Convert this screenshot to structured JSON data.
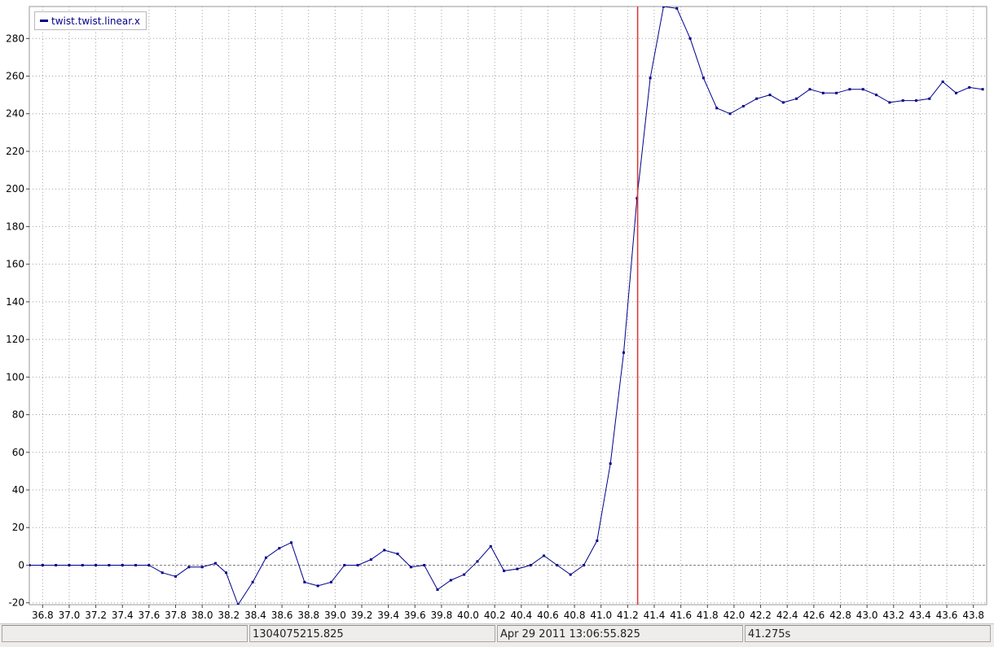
{
  "chart_data": {
    "type": "line",
    "legend": {
      "label": "twist.twist.linear.x",
      "placement": "top-left"
    },
    "xlim": [
      36.7,
      43.9
    ],
    "ylim": [
      -21,
      297
    ],
    "grid": true,
    "x_ticks": [
      "36.8",
      "37.0",
      "37.2",
      "37.4",
      "37.6",
      "37.8",
      "38.0",
      "38.2",
      "38.4",
      "38.6",
      "38.8",
      "39.0",
      "39.2",
      "39.4",
      "39.6",
      "39.8",
      "40.0",
      "40.2",
      "40.4",
      "40.6",
      "40.8",
      "41.0",
      "41.2",
      "41.4",
      "41.6",
      "41.8",
      "42.0",
      "42.2",
      "42.4",
      "42.6",
      "42.8",
      "43.0",
      "43.2",
      "43.4",
      "43.6",
      "43.8"
    ],
    "y_ticks": [
      "-20",
      "0",
      "20",
      "40",
      "60",
      "80",
      "100",
      "120",
      "140",
      "160",
      "180",
      "200",
      "220",
      "240",
      "260",
      "280"
    ],
    "cursor_x": 41.275,
    "colors": {
      "series": "#00008b",
      "cursor": "#e03030",
      "zero_line": "#808080",
      "grid": "#a0a0a0"
    },
    "series": [
      {
        "name": "twist.twist.linear.x",
        "x": [
          36.7,
          36.8,
          36.9,
          37.0,
          37.1,
          37.2,
          37.3,
          37.4,
          37.5,
          37.6,
          37.7,
          37.8,
          37.9,
          38.0,
          38.1,
          38.18,
          38.27,
          38.38,
          38.48,
          38.58,
          38.67,
          38.77,
          38.87,
          38.97,
          39.07,
          39.17,
          39.27,
          39.37,
          39.47,
          39.57,
          39.67,
          39.77,
          39.87,
          39.97,
          40.07,
          40.17,
          40.27,
          40.37,
          40.47,
          40.57,
          40.67,
          40.77,
          40.87,
          40.97,
          41.07,
          41.17,
          41.27,
          41.37,
          41.47,
          41.57,
          41.67,
          41.77,
          41.87,
          41.97,
          42.07,
          42.17,
          42.27,
          42.37,
          42.47,
          42.57,
          42.67,
          42.77,
          42.87,
          42.97,
          43.07,
          43.17,
          43.27,
          43.37,
          43.47,
          43.57,
          43.67,
          43.77,
          43.87
        ],
        "y": [
          0,
          0,
          0,
          0,
          0,
          0,
          0,
          0,
          0,
          0,
          -4,
          -6,
          -1,
          -1,
          1,
          -4,
          -21,
          -9,
          4,
          9,
          12,
          -9,
          -11,
          -9,
          0,
          0,
          3,
          8,
          6,
          -1,
          0,
          -13,
          -8,
          -5,
          2,
          10,
          -3,
          -2,
          0,
          5,
          0,
          -5,
          0,
          13,
          54,
          113,
          195,
          259,
          297,
          296,
          280,
          259,
          243,
          240,
          244,
          248,
          250,
          246,
          248,
          253,
          251,
          251,
          253,
          253,
          250,
          246,
          247,
          247,
          248,
          257,
          251,
          254,
          253
        ]
      }
    ]
  },
  "statusbar": {
    "fields": [
      "",
      "1304075215.825",
      "Apr 29 2011 13:06:55.825",
      "41.275s"
    ]
  }
}
